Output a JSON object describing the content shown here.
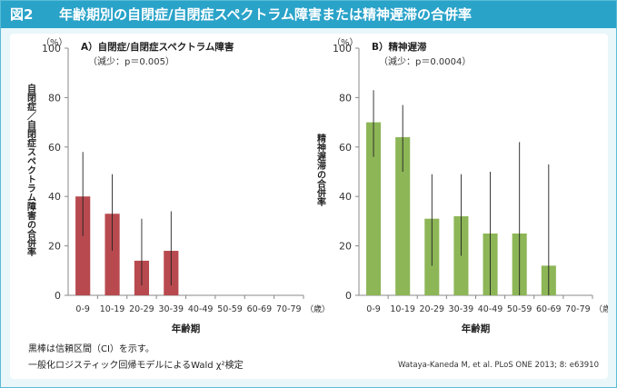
{
  "figure": {
    "number": "図2",
    "title": "年齢期別の自閉症/自閉症スペクトラム障害または精神遅滞の合併率",
    "notes": [
      "黒棒は信頼区間（CI）を示す。",
      "一般化ロジスティック回帰モデルによるWald χ²検定"
    ],
    "credit": "Wataya-Kaneda M, et al. PLoS ONE 2013; 8: e63910"
  },
  "colors": {
    "header": "#2aa3c9",
    "red": "#b84a4f",
    "green": "#8db657"
  },
  "chart_data": [
    {
      "type": "bar",
      "panel": "A）自閉症/自閉症スペクトラム障害",
      "subtitle": "（減少：p＝0.005）",
      "unit": "（%）",
      "ylabel": "自閉症／自閉症スペクトラム障害の合併率",
      "xlabel": "年齢期",
      "x_unit": "（歳）",
      "ylim": [
        0,
        100
      ],
      "yticks": [
        0,
        20,
        40,
        60,
        80,
        100
      ],
      "categories": [
        "0-9",
        "10-19",
        "20-29",
        "30-39",
        "40-49",
        "50-59",
        "60-69",
        "70-79"
      ],
      "values": [
        40,
        33,
        14,
        18,
        0,
        0,
        0,
        0
      ],
      "ci_low": [
        24,
        18,
        4,
        4,
        null,
        null,
        null,
        null
      ],
      "ci_high": [
        58,
        49,
        31,
        34,
        null,
        null,
        null,
        null
      ],
      "color": "#b84a4f"
    },
    {
      "type": "bar",
      "panel": "B）精神遅滞",
      "subtitle": "（減少：p＝0.0004）",
      "unit": "（%）",
      "ylabel": "精神遅滞の合併率",
      "xlabel": "年齢期",
      "x_unit": "（歳）",
      "ylim": [
        0,
        100
      ],
      "yticks": [
        0,
        20,
        40,
        60,
        80,
        100
      ],
      "categories": [
        "0-9",
        "10-19",
        "20-29",
        "30-39",
        "40-49",
        "50-59",
        "60-69",
        "70-79"
      ],
      "values": [
        70,
        64,
        31,
        32,
        25,
        25,
        12,
        0
      ],
      "ci_low": [
        56,
        50,
        12,
        16,
        0,
        0,
        0,
        null
      ],
      "ci_high": [
        83,
        77,
        49,
        49,
        50,
        62,
        53,
        null
      ],
      "color": "#8db657"
    }
  ]
}
